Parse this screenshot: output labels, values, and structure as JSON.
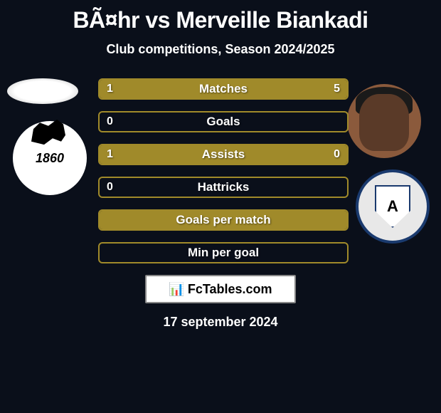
{
  "header": {
    "title": "BÃ¤hr vs Merveille Biankadi",
    "subtitle": "Club competitions, Season 2024/2025"
  },
  "players": {
    "left_club_year": "1860",
    "right_club_letter": "A"
  },
  "bars": [
    {
      "label": "Matches",
      "left_val": "1",
      "right_val": "5",
      "left_pct": 16.7,
      "right_pct": 83.3,
      "show_vals": true
    },
    {
      "label": "Goals",
      "left_val": "0",
      "right_val": "",
      "left_pct": 0,
      "right_pct": 0,
      "show_vals": true,
      "show_right": false
    },
    {
      "label": "Assists",
      "left_val": "1",
      "right_val": "0",
      "left_pct": 75,
      "right_pct": 25,
      "show_vals": true
    },
    {
      "label": "Hattricks",
      "left_val": "0",
      "right_val": "",
      "left_pct": 0,
      "right_pct": 0,
      "show_vals": true,
      "show_right": false
    },
    {
      "label": "Goals per match",
      "left_val": "",
      "right_val": "",
      "left_pct": 100,
      "right_pct": 0,
      "show_vals": false
    },
    {
      "label": "Min per goal",
      "left_val": "",
      "right_val": "",
      "left_pct": 0,
      "right_pct": 0,
      "show_vals": false
    }
  ],
  "branding": {
    "icon": "📊",
    "text": "FcTables.com"
  },
  "date": "17 september 2024",
  "colors": {
    "bar_fill": "#a08a2a",
    "bar_border": "#a08a2a",
    "background": "#0a0f1a",
    "text": "#ffffff"
  }
}
